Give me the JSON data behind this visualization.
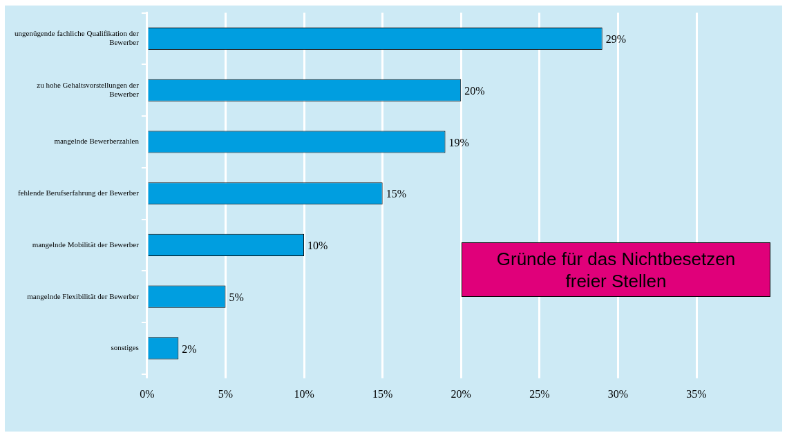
{
  "chart_data": {
    "type": "bar",
    "orientation": "horizontal",
    "title": "Gründe für das Nichtbesetzen freier Stellen",
    "categories": [
      "ungenügende fachliche Qualifikation der Bewerber",
      "zu hohe Gehaltsvorstellungen der Bewerber",
      "mangelnde Bewerberzahlen",
      "fehlende Berufserfahrung der Bewerber",
      "mangelnde Mobilität der Bewerber",
      "mangelnde Flexibilität der Bewerber",
      "sonstiges"
    ],
    "values": [
      29,
      20,
      19,
      15,
      10,
      5,
      2
    ],
    "value_labels": [
      "29%",
      "20%",
      "19%",
      "15%",
      "10%",
      "5%",
      "2%"
    ],
    "color": "#009ee0",
    "xlim": [
      0,
      35
    ],
    "xticks": [
      {
        "value": 0,
        "label": "0%"
      },
      {
        "value": 5,
        "label": "5%"
      },
      {
        "value": 10,
        "label": "10%"
      },
      {
        "value": 15,
        "label": "15%"
      },
      {
        "value": 20,
        "label": "20%"
      },
      {
        "value": 25,
        "label": "25%"
      },
      {
        "value": 30,
        "label": "30%"
      },
      {
        "value": 35,
        "label": "35%"
      }
    ],
    "grid": "x"
  }
}
